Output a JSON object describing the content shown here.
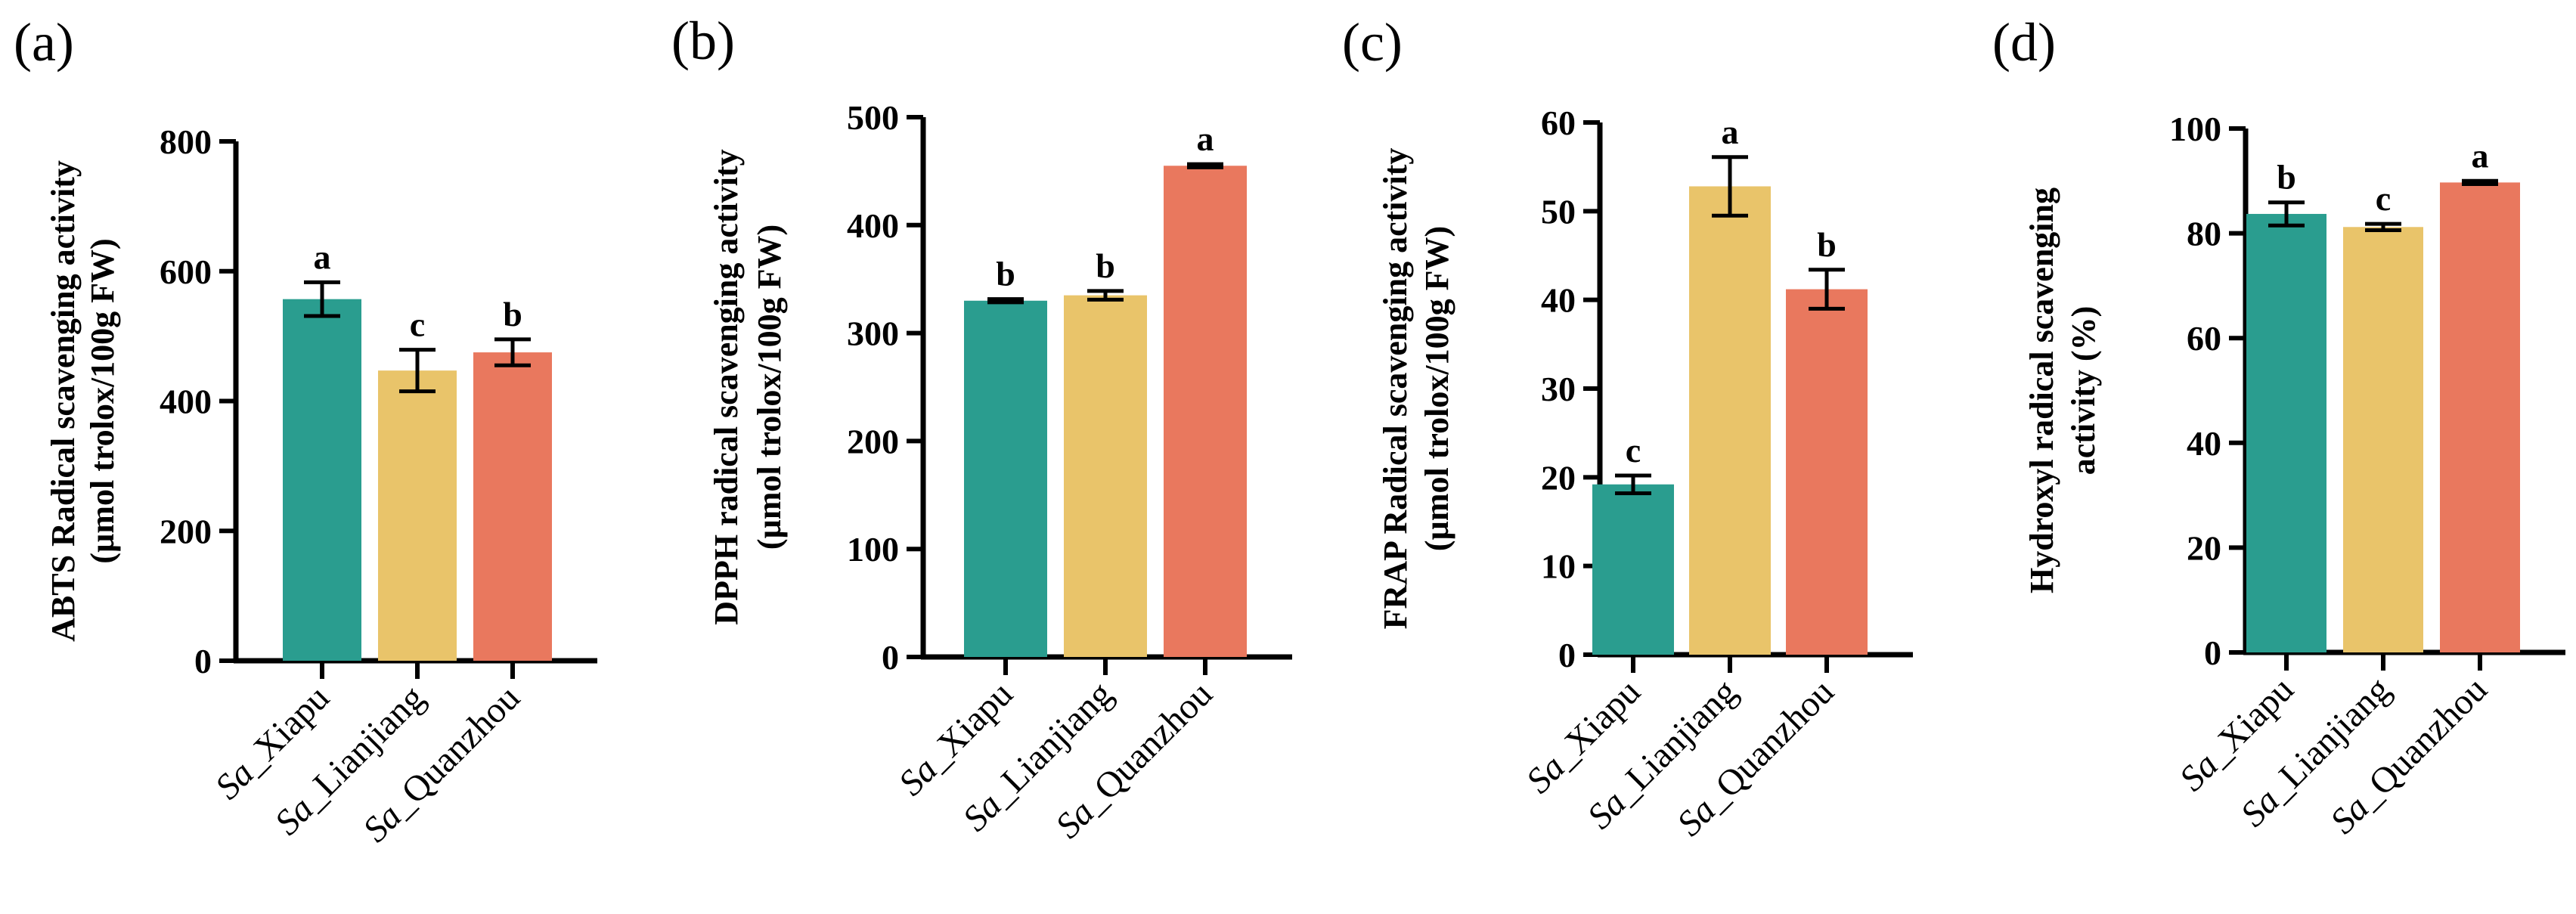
{
  "colors": {
    "series": [
      "#2a9d8f",
      "#e9c46a",
      "#e9785e"
    ],
    "axis": "#000000"
  },
  "chart_data": [
    {
      "type": "bar",
      "panel_label": "(a)",
      "ylabel_lines": [
        "ABTS Radical scavenging activity",
        "(µmol trolox/100g FW)"
      ],
      "categories": [
        {
          "prefix": "Sa",
          "name": "_Xiapu"
        },
        {
          "prefix": "Sa",
          "name": "_Lianjiang"
        },
        {
          "prefix": "Sa",
          "name": "_Quanzhou"
        }
      ],
      "values": [
        557,
        447,
        475
      ],
      "errors": [
        26,
        32,
        20
      ],
      "significance": [
        "a",
        "c",
        "b"
      ],
      "ylim": [
        0,
        800
      ],
      "yticks": [
        0,
        200,
        400,
        600,
        800
      ]
    },
    {
      "type": "bar",
      "panel_label": "(b)",
      "ylabel_lines": [
        "DPPH radical scavenging activity",
        "(µmol trolox/100g FW)"
      ],
      "categories": [
        {
          "prefix": "Sa",
          "name": "_Xiapu"
        },
        {
          "prefix": "Sa",
          "name": "_Lianjiang"
        },
        {
          "prefix": "Sa",
          "name": "_Quanzhou"
        }
      ],
      "values": [
        330,
        335,
        455
      ],
      "errors": [
        1.5,
        4,
        1.5
      ],
      "significance": [
        "b",
        "b",
        "a"
      ],
      "ylim": [
        0,
        500
      ],
      "yticks": [
        0,
        100,
        200,
        300,
        400,
        500
      ]
    },
    {
      "type": "bar",
      "panel_label": "(c)",
      "ylabel_lines": [
        "FRAP Radical scavenging activity",
        "(µmol trolox/100g FW)"
      ],
      "categories": [
        {
          "prefix": "Sa",
          "name": "_Xiapu"
        },
        {
          "prefix": "Sa",
          "name": "_Lianjiang"
        },
        {
          "prefix": "Sa",
          "name": "_Quanzhou"
        }
      ],
      "values": [
        19.2,
        52.8,
        41.2
      ],
      "errors": [
        1,
        3.3,
        2.2
      ],
      "significance": [
        "c",
        "a",
        "b"
      ],
      "ylim": [
        0,
        60
      ],
      "yticks": [
        0,
        10,
        20,
        30,
        40,
        50,
        60
      ]
    },
    {
      "type": "bar",
      "panel_label": "(d)",
      "ylabel_lines": [
        "Hydroxyl radical scavenging",
        "activity (%)"
      ],
      "categories": [
        {
          "prefix": "Sa",
          "name": "_Xiapu"
        },
        {
          "prefix": "Sa",
          "name": "_Lianjiang"
        },
        {
          "prefix": "Sa",
          "name": "_Quanzhou"
        }
      ],
      "values": [
        83.7,
        81.2,
        89.7
      ],
      "errors": [
        2.2,
        0.6,
        0.3
      ],
      "significance": [
        "b",
        "c",
        "a"
      ],
      "ylim": [
        0,
        100
      ],
      "yticks": [
        0,
        20,
        40,
        60,
        80,
        100
      ]
    }
  ]
}
